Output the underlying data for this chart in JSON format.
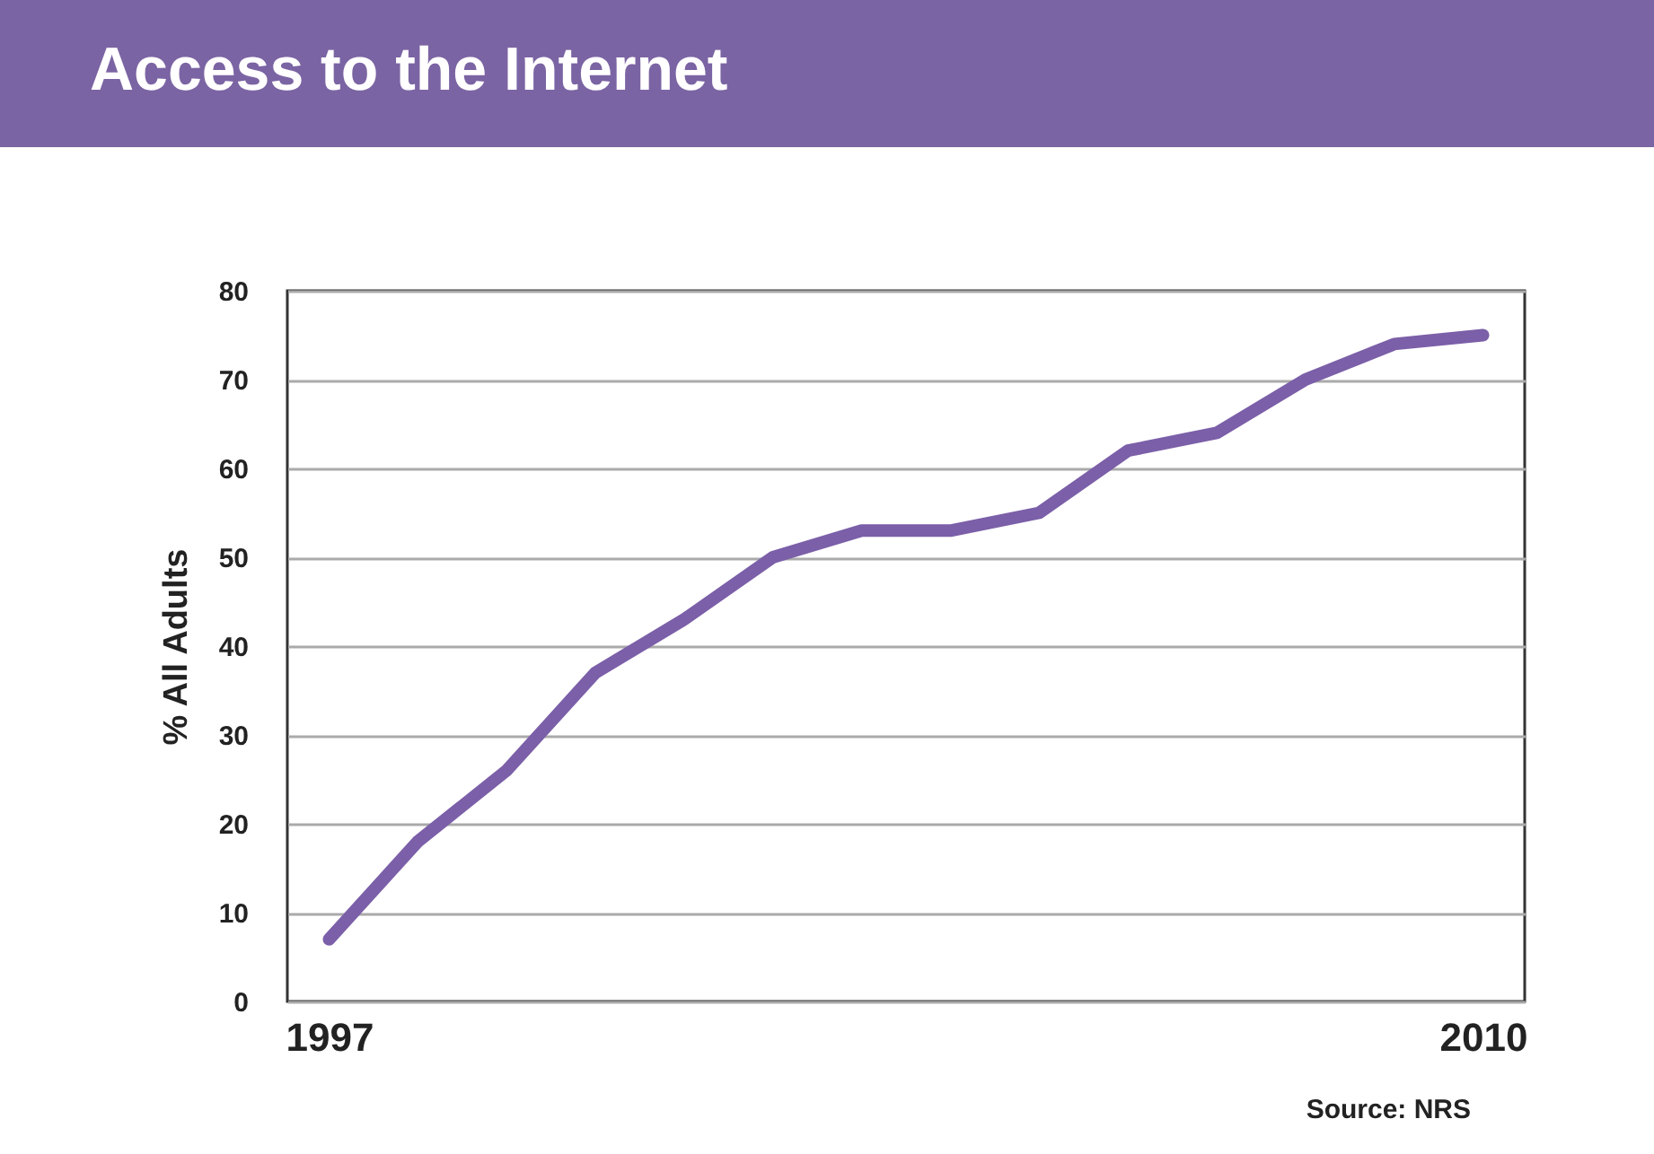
{
  "chart_data": {
    "type": "line",
    "title": "Access to the Internet",
    "ylabel": "% All Adults",
    "categories": [
      "1997",
      null,
      null,
      null,
      null,
      null,
      null,
      null,
      null,
      null,
      null,
      null,
      null,
      "2010"
    ],
    "series": [
      {
        "color": "#7b5fa8",
        "values": [
          7,
          18,
          26,
          37,
          43,
          50,
          53,
          53,
          55,
          62,
          64,
          70,
          74,
          75
        ]
      }
    ],
    "ylim": [
      0,
      80
    ],
    "yticks": [
      0,
      10,
      20,
      30,
      40,
      50,
      60,
      70,
      80
    ],
    "grid": "y",
    "legend": false,
    "marker": "none",
    "line_style": "solid",
    "annotations": [
      "Source: NRS"
    ]
  }
}
